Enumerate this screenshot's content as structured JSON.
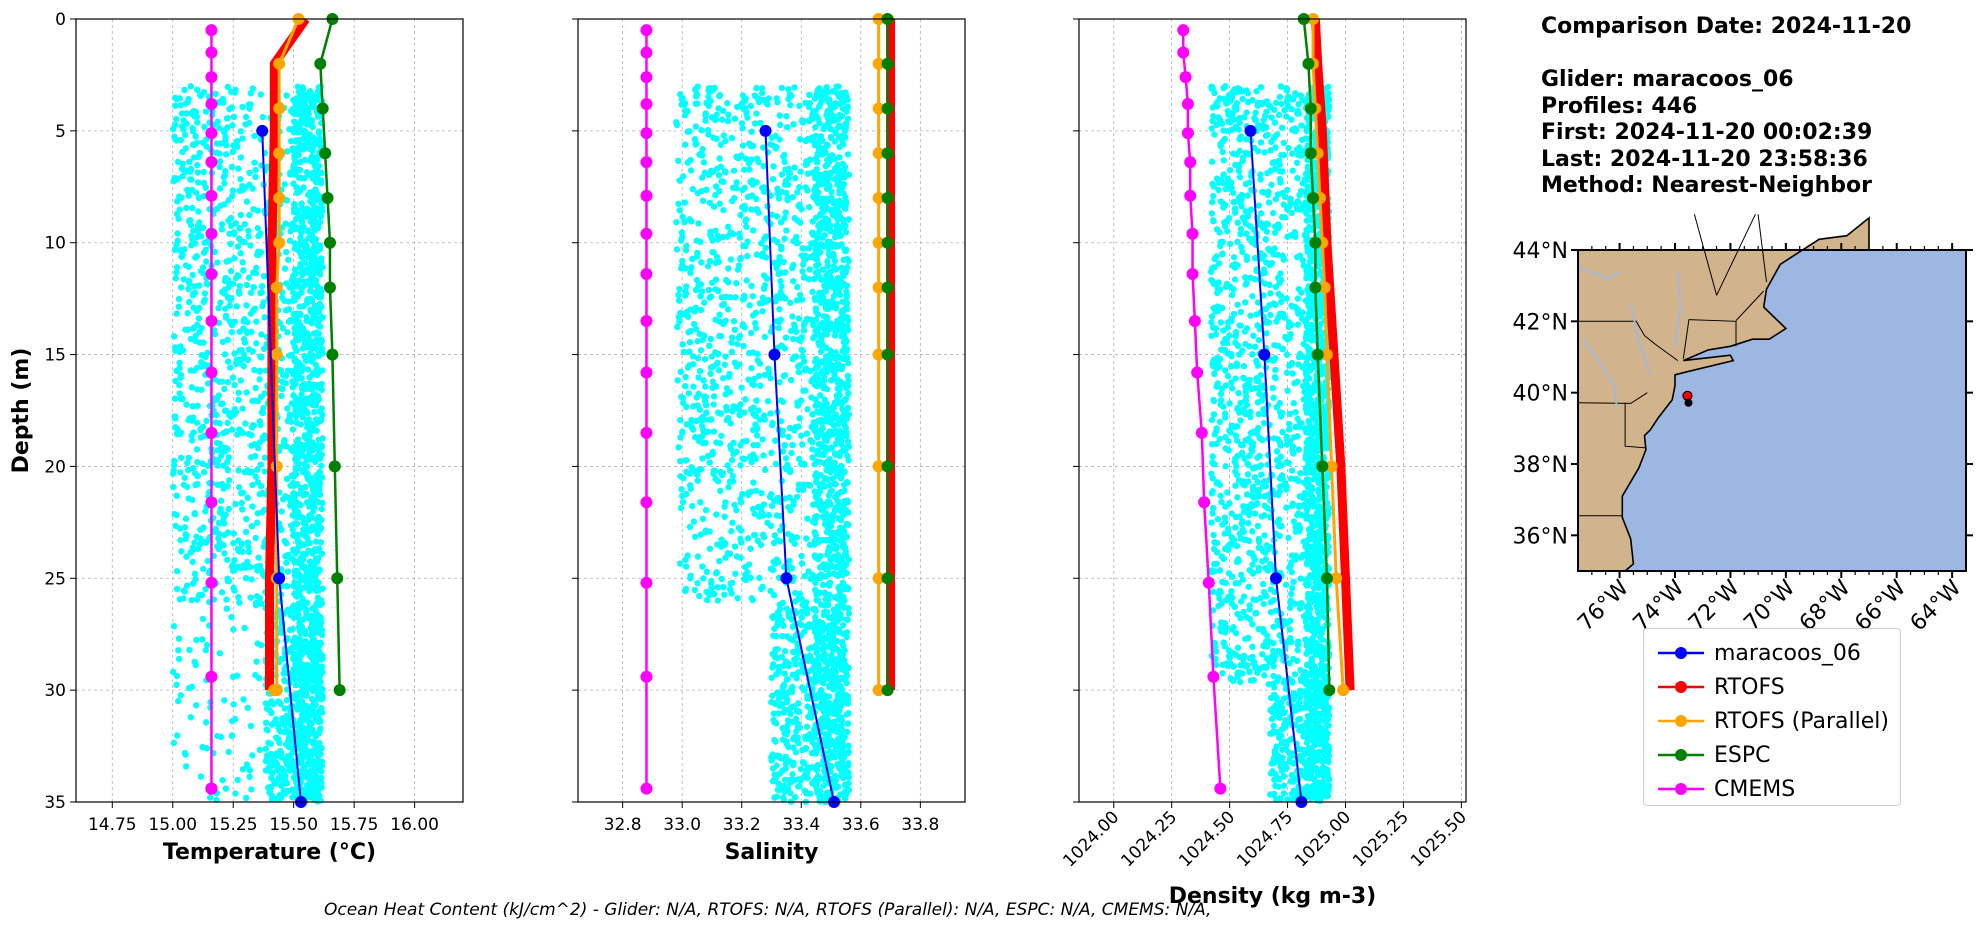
{
  "info": {
    "comparison_date": "Comparison Date: 2024-11-20",
    "glider": "Glider: maracoos_06",
    "profiles": "Profiles: 446",
    "first": "First: 2024-11-20 00:02:39",
    "last": "Last: 2024-11-20 23:58:36",
    "method": "Method: Nearest-Neighbor"
  },
  "footnote": "Ocean Heat Content (kJ/cm^2) - Glider: N/A,  RTOFS: N/A,  RTOFS (Parallel): N/A,  ESPC: N/A,  CMEMS: N/A,",
  "colors": {
    "glider": "#0000ff",
    "rtofs": "#ff0000",
    "rtofs_parallel": "#ffa500",
    "espc": "#008000",
    "cmems": "#ff00ff",
    "scatter": "#00ffff",
    "land": "#d2b48c",
    "ocean": "#9bb7e2"
  },
  "legend": [
    {
      "key": "glider",
      "label": "maracoos_06"
    },
    {
      "key": "rtofs",
      "label": "RTOFS"
    },
    {
      "key": "rtofs_parallel",
      "label": "RTOFS (Parallel)"
    },
    {
      "key": "espc",
      "label": "ESPC"
    },
    {
      "key": "cmems",
      "label": "CMEMS"
    }
  ],
  "chart_data": [
    {
      "type": "line",
      "id": "temperature",
      "xlabel": "Temperature (°C)",
      "ylabel": "Depth (m)",
      "xlim": [
        14.6,
        16.2
      ],
      "ylim": [
        35,
        0
      ],
      "xticks": [
        14.75,
        15.0,
        15.25,
        15.5,
        15.75,
        16.0
      ],
      "yticks": [
        0,
        5,
        10,
        15,
        20,
        25,
        30,
        35
      ],
      "grid": true,
      "scatter": {
        "name": "glider profiles",
        "x_range": [
          15.0,
          15.62
        ],
        "depth_range": [
          3,
          35
        ]
      },
      "series": [
        {
          "name": "maracoos_06",
          "x": [
            15.37,
            15.44,
            15.53
          ],
          "depth": [
            5,
            25,
            35
          ]
        },
        {
          "name": "RTOFS",
          "x": [
            15.55,
            15.42,
            15.42,
            15.41,
            15.41,
            15.41,
            15.4,
            15.4,
            15.4
          ],
          "depth": [
            0,
            2,
            5,
            10,
            15,
            20,
            25,
            30,
            30
          ]
        },
        {
          "name": "RTOFS (Parallel)",
          "x": [
            15.52,
            15.44,
            15.44,
            15.44,
            15.44,
            15.44,
            15.43,
            15.43,
            15.43,
            15.43,
            15.43,
            15.42,
            15.42
          ],
          "depth": [
            0,
            2,
            4,
            6,
            8,
            10,
            12,
            15,
            20,
            25,
            30,
            30,
            30
          ]
        },
        {
          "name": "ESPC",
          "x": [
            15.66,
            15.61,
            15.62,
            15.63,
            15.64,
            15.65,
            15.65,
            15.66,
            15.67,
            15.68,
            15.69
          ],
          "depth": [
            0,
            2,
            4,
            6,
            8,
            10,
            12,
            15,
            20,
            25,
            30
          ]
        },
        {
          "name": "CMEMS",
          "x": [
            15.16,
            15.16,
            15.16,
            15.16,
            15.16,
            15.16,
            15.16,
            15.16,
            15.16,
            15.16,
            15.16,
            15.16,
            15.16,
            15.16,
            15.16,
            15.16,
            15.16,
            15.16,
            15.16
          ],
          "depth": [
            0.5,
            1.5,
            2.6,
            3.8,
            5.1,
            6.4,
            7.9,
            9.6,
            11.4,
            13.5,
            15.8,
            18.5,
            21.6,
            25.2,
            29.4,
            34.4,
            34.4,
            34.4,
            34.4
          ]
        }
      ]
    },
    {
      "type": "line",
      "id": "salinity",
      "xlabel": "Salinity",
      "ylabel": "",
      "xlim": [
        32.65,
        33.95
      ],
      "ylim": [
        35,
        0
      ],
      "xticks": [
        32.8,
        33.0,
        33.2,
        33.4,
        33.6,
        33.8
      ],
      "yticks": [
        0,
        5,
        10,
        15,
        20,
        25,
        30,
        35
      ],
      "grid": true,
      "scatter": {
        "name": "glider profiles",
        "x_range": [
          32.98,
          33.56
        ],
        "depth_range": [
          3,
          35
        ]
      },
      "series": [
        {
          "name": "maracoos_06",
          "x": [
            33.28,
            33.31,
            33.35,
            33.51
          ],
          "depth": [
            5,
            15,
            25,
            35
          ]
        },
        {
          "name": "RTOFS",
          "x": [
            33.7,
            33.7,
            33.7,
            33.7,
            33.7,
            33.7,
            33.7,
            33.7,
            33.7
          ],
          "depth": [
            0,
            2,
            5,
            10,
            15,
            20,
            25,
            30,
            30
          ]
        },
        {
          "name": "RTOFS (Parallel)",
          "x": [
            33.66,
            33.66,
            33.66,
            33.66,
            33.66,
            33.66,
            33.66,
            33.66,
            33.66,
            33.66,
            33.66
          ],
          "depth": [
            0,
            2,
            4,
            6,
            8,
            10,
            12,
            15,
            20,
            25,
            30
          ]
        },
        {
          "name": "ESPC",
          "x": [
            33.69,
            33.69,
            33.69,
            33.69,
            33.69,
            33.69,
            33.69,
            33.69,
            33.69,
            33.69,
            33.69
          ],
          "depth": [
            0,
            2,
            4,
            6,
            8,
            10,
            12,
            15,
            20,
            25,
            30
          ]
        },
        {
          "name": "CMEMS",
          "x": [
            32.88,
            32.88,
            32.88,
            32.88,
            32.88,
            32.88,
            32.88,
            32.88,
            32.88,
            32.88,
            32.88,
            32.88,
            32.88,
            32.88,
            32.88,
            32.88
          ],
          "depth": [
            0.5,
            1.5,
            2.6,
            3.8,
            5.1,
            6.4,
            7.9,
            9.6,
            11.4,
            13.5,
            15.8,
            18.5,
            21.6,
            25.2,
            29.4,
            34.4
          ]
        }
      ]
    },
    {
      "type": "line",
      "id": "density",
      "xlabel": "Density (kg m-3)",
      "ylabel": "",
      "xlim": [
        1023.85,
        1025.52
      ],
      "ylim": [
        35,
        0
      ],
      "xticks": [
        1024.0,
        1024.25,
        1024.5,
        1024.75,
        1025.0,
        1025.25,
        1025.5
      ],
      "yticks": [
        0,
        5,
        10,
        15,
        20,
        25,
        30,
        35
      ],
      "grid": true,
      "scatter": {
        "name": "glider profiles",
        "x_range": [
          1024.42,
          1024.93
        ],
        "depth_range": [
          3,
          35
        ]
      },
      "series": [
        {
          "name": "maracoos_06",
          "x": [
            1024.59,
            1024.65,
            1024.7,
            1024.81
          ],
          "depth": [
            5,
            15,
            25,
            35
          ]
        },
        {
          "name": "RTOFS",
          "x": [
            1024.87,
            1024.88,
            1024.9,
            1024.92,
            1024.95,
            1024.98,
            1025.0,
            1025.02,
            1025.02
          ],
          "depth": [
            0,
            2,
            5,
            10,
            15,
            20,
            25,
            30,
            30
          ]
        },
        {
          "name": "RTOFS (Parallel)",
          "x": [
            1024.86,
            1024.86,
            1024.87,
            1024.88,
            1024.89,
            1024.9,
            1024.91,
            1024.92,
            1024.94,
            1024.96,
            1024.99
          ],
          "depth": [
            0,
            2,
            4,
            6,
            8,
            10,
            12,
            15,
            20,
            25,
            30
          ]
        },
        {
          "name": "ESPC",
          "x": [
            1024.82,
            1024.84,
            1024.85,
            1024.85,
            1024.86,
            1024.87,
            1024.87,
            1024.88,
            1024.9,
            1024.92,
            1024.93
          ],
          "depth": [
            0,
            2,
            4,
            6,
            8,
            10,
            12,
            15,
            20,
            25,
            30
          ]
        },
        {
          "name": "CMEMS",
          "x": [
            1024.3,
            1024.3,
            1024.31,
            1024.32,
            1024.32,
            1024.33,
            1024.33,
            1024.34,
            1024.34,
            1024.35,
            1024.36,
            1024.38,
            1024.39,
            1024.41,
            1024.43,
            1024.46
          ],
          "depth": [
            0.5,
            1.5,
            2.6,
            3.8,
            5.1,
            6.4,
            7.9,
            9.6,
            11.4,
            13.5,
            15.8,
            18.5,
            21.6,
            25.2,
            29.4,
            34.4
          ]
        }
      ]
    },
    {
      "type": "map",
      "id": "location-map",
      "lon_range": [
        -77.5,
        -63.5
      ],
      "lat_range": [
        35,
        44
      ],
      "xticks": [
        -76,
        -74,
        -72,
        -70,
        -68,
        -66,
        -64
      ],
      "yticks": [
        36,
        38,
        40,
        42,
        44
      ],
      "xtick_labels": [
        "76°W",
        "74°W",
        "72°W",
        "70°W",
        "68°W",
        "66°W",
        "64°W"
      ],
      "ytick_labels": [
        "36°N",
        "38°N",
        "40°N",
        "42°N",
        "44°N"
      ],
      "glider_position": {
        "lon": -73.55,
        "lat": 39.8
      }
    }
  ]
}
